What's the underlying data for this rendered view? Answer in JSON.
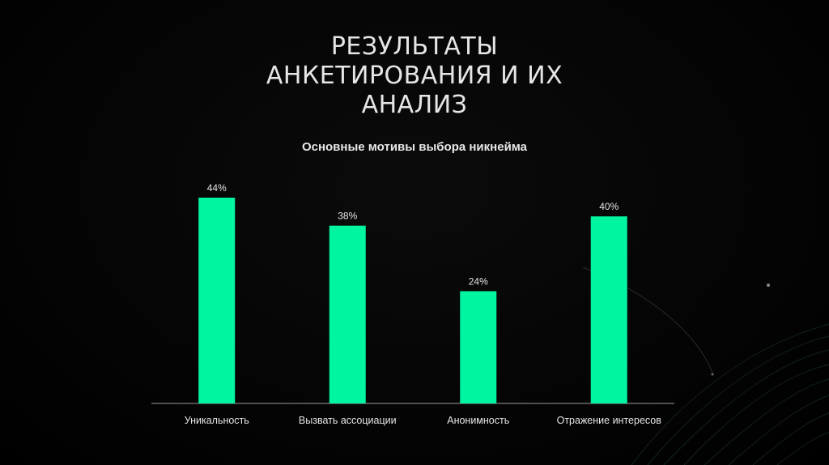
{
  "slide": {
    "title_lines": [
      "РЕЗУЛЬТАТЫ",
      "АНКЕТИРОВАНИЯ И ИХ",
      "АНАЛИЗ"
    ]
  },
  "colors": {
    "background": "#000000",
    "bar": "#00f5a0",
    "text": "#e6e6e6",
    "axis": "#9a9a9a"
  },
  "chart_data": {
    "type": "bar",
    "title": "Основные мотивы выбора никнейма",
    "categories": [
      "Уникальность",
      "Вызвать ассоциации",
      "Анонимность",
      "Отражение интересов"
    ],
    "values": [
      44,
      38,
      24,
      40
    ],
    "data_labels": [
      "44%",
      "38%",
      "24%",
      "40%"
    ],
    "unit": "%",
    "ylim": [
      0,
      44
    ],
    "grid": false,
    "legend": "none"
  }
}
